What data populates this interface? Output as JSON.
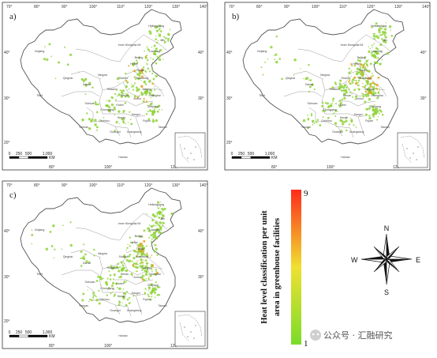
{
  "panels": [
    {
      "label": "a)",
      "left_coords": [
        "40°",
        "30°",
        "20°"
      ],
      "right_coords": [
        "40°",
        "30°",
        "20°"
      ]
    },
    {
      "label": "b)",
      "left_coords": [
        "40°",
        "30°",
        "20°"
      ],
      "right_coords": [
        "40°",
        "30°",
        "20°"
      ]
    },
    {
      "label": "c)",
      "left_coords": [
        "40°",
        "30°",
        "20°"
      ],
      "right_coords": [
        "40°",
        "30°",
        "20°"
      ]
    }
  ],
  "top_coords_a": [
    "70°",
    "80°",
    "90°",
    "100°",
    "110°",
    "120°",
    "130°",
    "140°"
  ],
  "top_coords_b": [
    "70°",
    "80°",
    "90°",
    "100°",
    "110°",
    "120°",
    "130°",
    "140°"
  ],
  "top_coords_c": [
    "70°",
    "80°",
    "90°",
    "100°",
    "110°",
    "120°",
    "130°",
    "140°"
  ],
  "bottom_coords": [
    "80°",
    "100°",
    "120°"
  ],
  "provinces": {
    "heilongjiang": "Heilongjiang",
    "jilin": "Jilin",
    "liaoning": "Liaoning",
    "inner_mongolia": "Inner Mongolia IM",
    "xinjiang": "Xinjiang",
    "qinghai": "Qinghai",
    "tibet": "Tibet",
    "gansu": "Gansu",
    "ningxia": "Ningxia",
    "shaanxi": "Shaanxi",
    "shanxi": "Shanxi",
    "hebei": "Hebei",
    "beijing": "Beijing",
    "tianjin": "Tianjin",
    "shandong": "Shandong",
    "henan": "Henan",
    "jiangsu": "Jiangsu",
    "anhui": "Anhui",
    "shanghai": "Shanghai",
    "hubei": "Hubei",
    "sichuan": "Sichuan",
    "chongqing": "Chongqing",
    "zhejiang": "Zhejiang",
    "hunan": "Hunan",
    "jiangxi": "Jiangxi",
    "guizhou": "Guizhou",
    "fujian": "Fujian",
    "yunnan": "Yunnan",
    "guangxi": "Guangxi",
    "guangdong": "Guangdong",
    "taiwan": "Taiwan",
    "hainan": "Hainan"
  },
  "scale_bar": {
    "ticks": [
      "0",
      "250",
      "500",
      "1,000"
    ],
    "unit": "KM"
  },
  "legend": {
    "title_line1": "Heat level classification per unit",
    "title_line2": "area in greenhouse facilities",
    "max": "9",
    "min": "1",
    "color_high": "#ff2a1a",
    "color_mid": "#f0e030",
    "color_low": "#7bdc2a"
  },
  "compass": {
    "n": "N",
    "s": "S",
    "e": "E",
    "w": "W"
  },
  "watermark": "公众号 · 汇融研究",
  "colors": {
    "greenhouse_low": "#8fd43a",
    "greenhouse_high": "#e8a020",
    "border": "#666666"
  }
}
